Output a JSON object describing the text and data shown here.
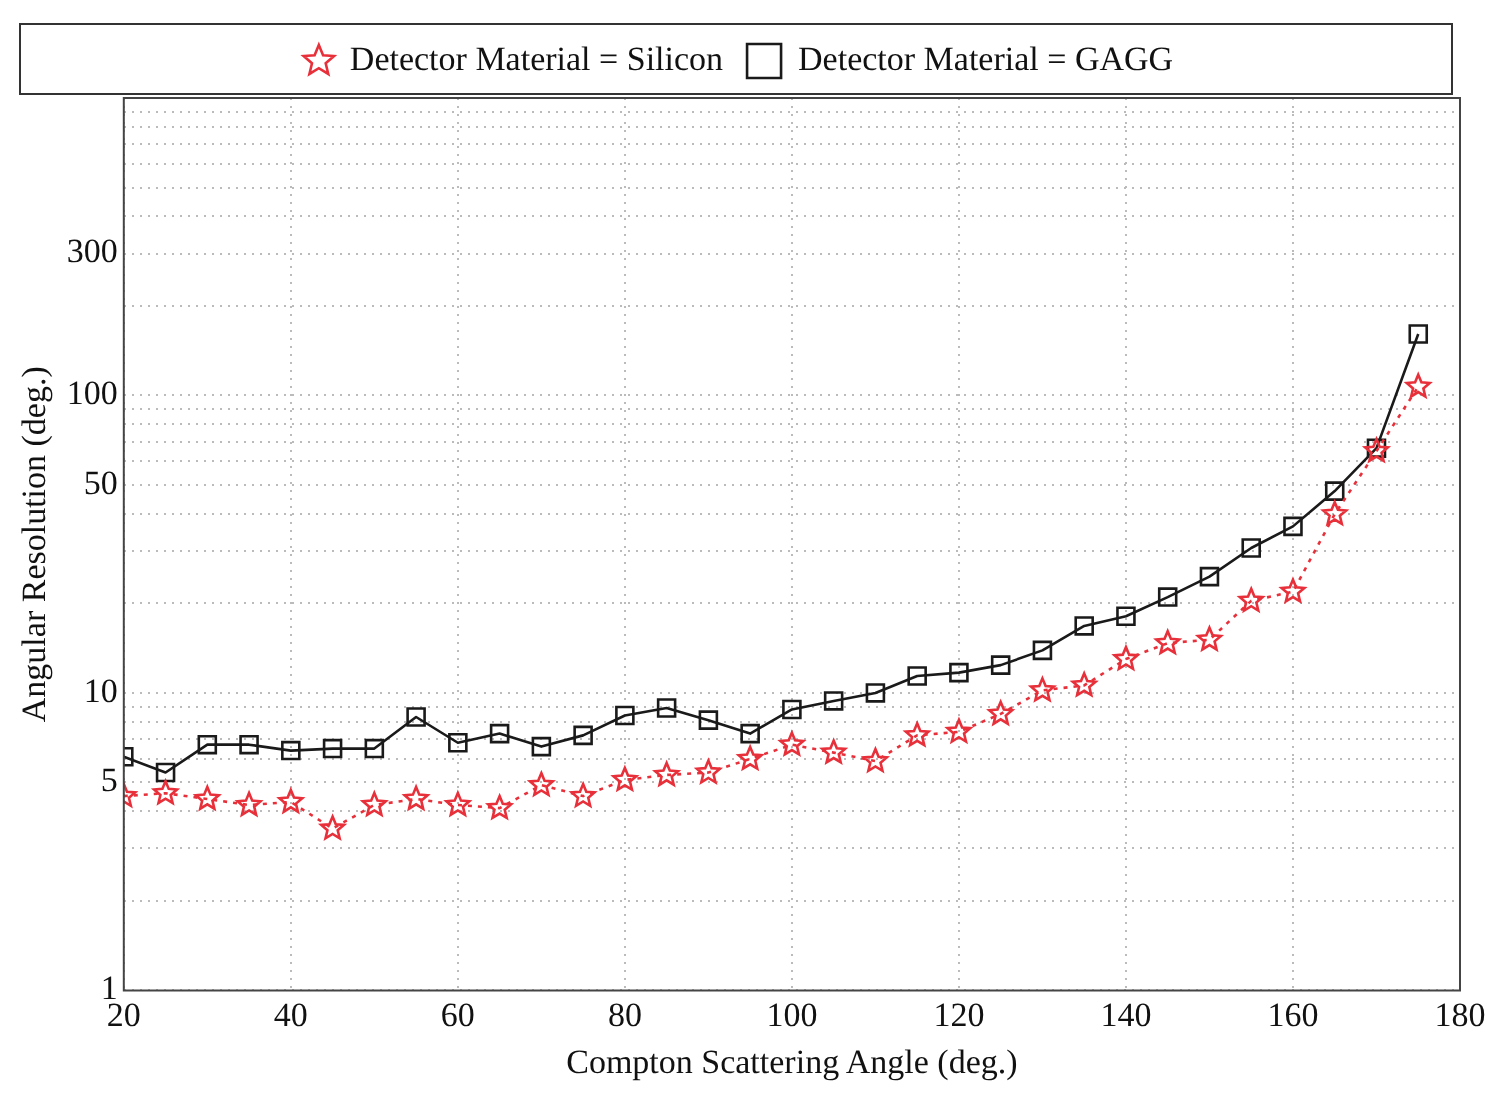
{
  "chart_data": {
    "type": "line",
    "xlabel": "Compton Scattering Angle (deg.)",
    "ylabel": "Angular Resolution (deg.)",
    "x": [
      20,
      25,
      30,
      35,
      40,
      45,
      50,
      55,
      60,
      65,
      70,
      75,
      80,
      85,
      90,
      95,
      100,
      105,
      110,
      115,
      120,
      125,
      130,
      135,
      140,
      145,
      150,
      155,
      160,
      165,
      170,
      175
    ],
    "series": [
      {
        "name": "Detector Material = Silicon",
        "color": "#e8303a",
        "marker": "star",
        "line_style": "dotted",
        "values": [
          4.5,
          4.6,
          4.4,
          4.2,
          4.3,
          3.5,
          4.2,
          4.4,
          4.2,
          4.1,
          4.9,
          4.5,
          5.1,
          5.3,
          5.4,
          6.0,
          6.7,
          6.3,
          5.9,
          7.2,
          7.4,
          8.5,
          10.2,
          10.6,
          13,
          14.7,
          15.1,
          20.4,
          21.9,
          39.9,
          65,
          107
        ]
      },
      {
        "name": "Detector Material = GAGG",
        "color": "#1a1a1a",
        "marker": "square",
        "line_style": "solid",
        "values": [
          6.1,
          5.4,
          6.7,
          6.7,
          6.4,
          6.5,
          6.5,
          8.3,
          6.8,
          7.3,
          6.6,
          7.2,
          8.4,
          8.9,
          8.1,
          7.3,
          8.8,
          9.4,
          10,
          11.4,
          11.7,
          12.4,
          13.9,
          16.8,
          18.1,
          21,
          24.6,
          30.7,
          36.3,
          47.7,
          66.5,
          161
        ]
      }
    ],
    "log": "y",
    "xlim": [
      20,
      180
    ],
    "xticks": [
      20,
      40,
      60,
      80,
      100,
      120,
      140,
      160,
      180
    ],
    "ylim": [
      1,
      1000
    ],
    "yticks": [
      1,
      {
        "value": 2,
        "label": null
      },
      {
        "value": 3,
        "label": null
      },
      {
        "value": 4,
        "label": null
      },
      5,
      {
        "value": 6,
        "label": null
      },
      {
        "value": 7,
        "label": null
      },
      {
        "value": 8,
        "label": null
      },
      {
        "value": 9,
        "label": null
      },
      10,
      {
        "value": 20,
        "label": null
      },
      {
        "value": 30,
        "label": null
      },
      {
        "value": 40,
        "label": null
      },
      50,
      {
        "value": 60,
        "label": null
      },
      {
        "value": 70,
        "label": null
      },
      {
        "value": 80,
        "label": null
      },
      {
        "value": 90,
        "label": null
      },
      100,
      {
        "value": 200,
        "label": null
      },
      300,
      {
        "value": 400,
        "label": null
      },
      {
        "value": 500,
        "label": null
      },
      {
        "value": 600,
        "label": null
      },
      {
        "value": 700,
        "label": null
      },
      {
        "value": 800,
        "label": null
      },
      {
        "value": 900,
        "label": null
      },
      {
        "value": 1000,
        "label": null
      }
    ],
    "grid": true,
    "legend": "top"
  }
}
